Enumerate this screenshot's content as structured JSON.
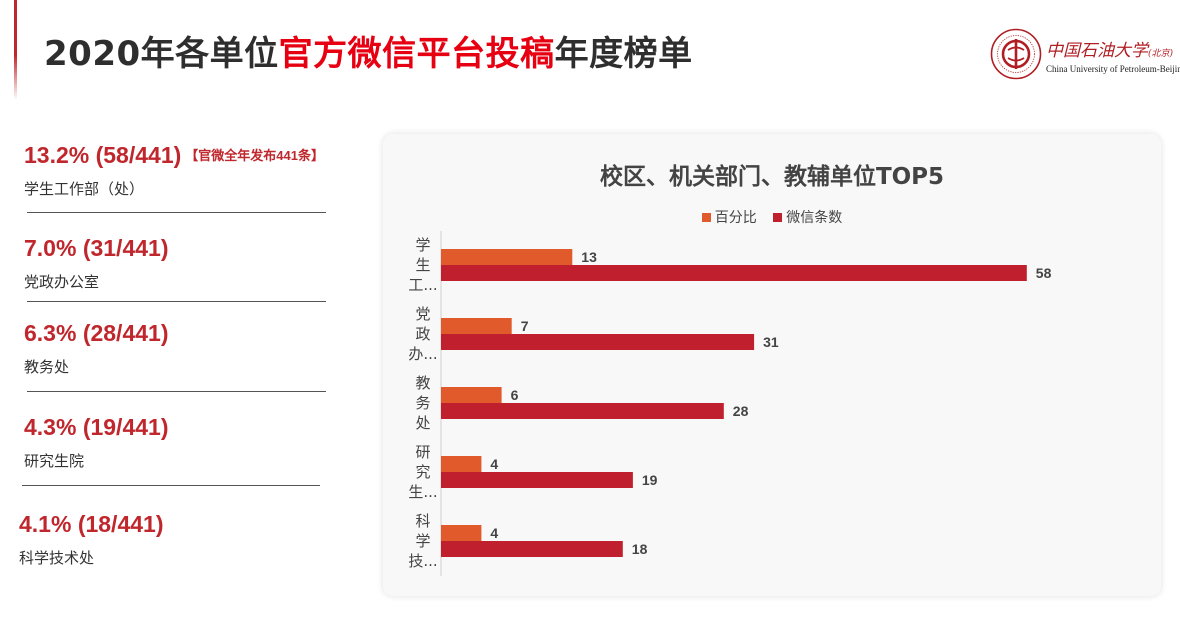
{
  "header": {
    "title_prefix": "2020年各单位",
    "title_highlight": "官方微信平台投稿",
    "title_suffix": "年度榜单"
  },
  "logo": {
    "name_cn": "中国石油大学",
    "name_cn_suffix": "(北京)",
    "name_en": "China University of Petroleum-Beijing"
  },
  "stats": [
    {
      "value": "13.2% (58/441)",
      "note": "【官微全年发布441条】",
      "label": "学生工作部（处）"
    },
    {
      "value": "7.0% (31/441)",
      "label": "党政办公室"
    },
    {
      "value": "6.3% (28/441)",
      "label": "教务处"
    },
    {
      "value": "4.3% (19/441)",
      "label": "研究生院"
    },
    {
      "value": "4.1% (18/441)",
      "label": "科学技术处"
    }
  ],
  "colors": {
    "accent": "#c0272d",
    "title_highlight": "#e60012",
    "series_percent": "#e05a2c",
    "series_count": "#c0202e"
  },
  "chart_data": {
    "type": "bar",
    "orientation": "horizontal",
    "title": "校区、机关部门、教辅单位TOP5",
    "legend_position": "top",
    "grid": false,
    "categories": [
      [
        "学",
        "生",
        "工..."
      ],
      [
        "党",
        "政",
        "办..."
      ],
      [
        "教",
        "务",
        "处"
      ],
      [
        "研",
        "究",
        "生..."
      ],
      [
        "科",
        "学",
        "技..."
      ]
    ],
    "series": [
      {
        "name": "百分比",
        "color": "#e05a2c",
        "values": [
          13,
          7,
          6,
          4,
          4
        ]
      },
      {
        "name": "微信条数",
        "color": "#c0202e",
        "values": [
          58,
          31,
          28,
          19,
          18
        ]
      }
    ],
    "xlim": [
      0,
      65
    ]
  }
}
